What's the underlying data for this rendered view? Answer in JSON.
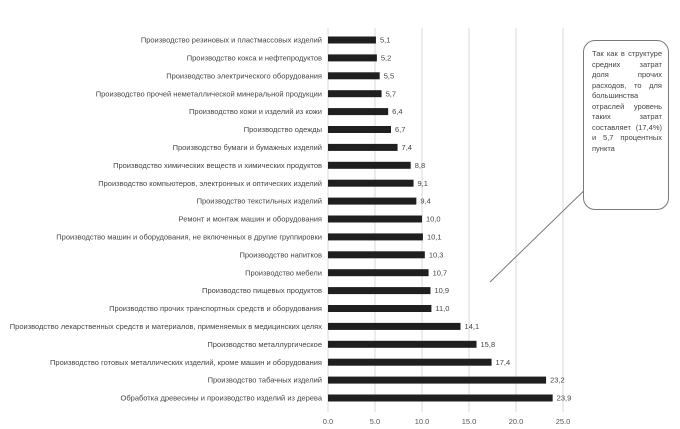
{
  "chart_data": {
    "type": "bar",
    "orientation": "horizontal",
    "title": "",
    "xlabel": "",
    "ylabel": "",
    "xlim": [
      0,
      30
    ],
    "x_ticks": [
      "0,0",
      "5,0",
      "10,0",
      "15,0",
      "20,0",
      "25,0"
    ],
    "grid": true,
    "categories": [
      "Производство резиновых и пластмассовых изделий",
      "Производство кокса и нефтепродуктов",
      "Производство электрического оборудования",
      "Производство прочей неметаллической минеральной продукции",
      "Производство кожи и изделий из кожи",
      "Производство одежды",
      "Производство бумаги и бумажных изделий",
      "Производство химических веществ и химических продуктов",
      "Производство компьютеров, электронных и оптических изделий",
      "Производство текстильных изделий",
      "Ремонт и монтаж машин и оборудования",
      "Производство машин и оборудования, не включенных в другие группировки",
      "Производство напитков",
      "Производство мебели",
      "Производство пищевых продуктов",
      "Производство прочих транспортных средств и оборудования",
      "Производство лекарственных средств и материалов, применяемых в медицинских целях",
      "Производство металлургическое",
      "Производство готовых металлических изделий, кроме машин и оборудования",
      "Производство табачных изделий",
      "Обработка древесины и производство изделий из дерева"
    ],
    "values": [
      5.1,
      5.2,
      5.5,
      5.7,
      6.4,
      6.7,
      7.4,
      8.8,
      9.1,
      9.4,
      10.0,
      10.1,
      10.3,
      10.7,
      10.9,
      11.0,
      14.1,
      15.8,
      17.4,
      23.2,
      23.9
    ],
    "value_labels": [
      "5,1",
      "5,2",
      "5,5",
      "5,7",
      "6,4",
      "6,7",
      "7,4",
      "8,8",
      "9,1",
      "9,4",
      "10,0",
      "10,1",
      "10,3",
      "10,7",
      "10,9",
      "11,0",
      "14,1",
      "15,8",
      "17,4",
      "23,2",
      "23,9"
    ]
  },
  "callout": {
    "text": "Так как в структуре средних затрат доля прочих расходов, то для большинства отраслей уровень таких затрат составляет (17,4%) и 5,7 процентных пункта"
  }
}
